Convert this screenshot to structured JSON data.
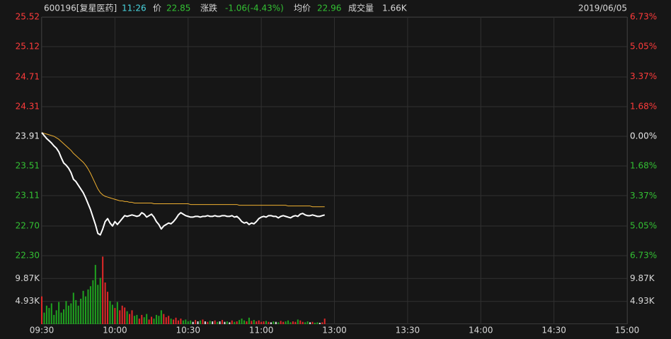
{
  "header": {
    "symbol": "600196[复星医药]",
    "time": "11:26",
    "price_label": "价",
    "price": "22.85",
    "change_label": "涨跌",
    "change": "-1.06(-4.43%)",
    "avg_label": "均价",
    "avg": "22.96",
    "volume_label": "成交量",
    "volume": "1.66K",
    "date": "2019/06/05"
  },
  "chart_data": [
    {
      "type": "line",
      "xlim": [
        0,
        240
      ],
      "xticks": [
        {
          "value": 0,
          "label": "09:30"
        },
        {
          "value": 30,
          "label": "10:00"
        },
        {
          "value": 60,
          "label": "10:30"
        },
        {
          "value": 90,
          "label": "11:00"
        },
        {
          "value": 120,
          "label": "13:00"
        },
        {
          "value": 150,
          "label": "13:30"
        },
        {
          "value": 180,
          "label": "14:00"
        },
        {
          "value": 210,
          "label": "14:30"
        },
        {
          "value": 240,
          "label": "15:00"
        }
      ],
      "ylim": [
        22.3,
        25.52
      ],
      "yticks": [
        {
          "value": 25.52,
          "label": "25.52"
        },
        {
          "value": 25.12,
          "label": "25.12"
        },
        {
          "value": 24.71,
          "label": "24.71"
        },
        {
          "value": 24.31,
          "label": "24.31"
        },
        {
          "value": 23.91,
          "label": "23.91"
        },
        {
          "value": 23.51,
          "label": "23.51"
        },
        {
          "value": 23.11,
          "label": "23.11"
        },
        {
          "value": 22.7,
          "label": "22.70"
        },
        {
          "value": 22.3,
          "label": "22.30"
        }
      ],
      "y2lim": [
        -6.73,
        6.73
      ],
      "y2ticks": [
        {
          "value": 6.73,
          "label": "6.73%"
        },
        {
          "value": 5.05,
          "label": "5.05%"
        },
        {
          "value": 3.37,
          "label": "3.37%"
        },
        {
          "value": 1.68,
          "label": "1.68%"
        },
        {
          "value": 0,
          "label": "0.00%"
        },
        {
          "value": -1.68,
          "label": "1.68%"
        },
        {
          "value": -3.37,
          "label": "3.37%"
        },
        {
          "value": -5.05,
          "label": "5.05%"
        },
        {
          "value": -6.73,
          "label": "6.73%"
        }
      ],
      "grid": true,
      "up_color": "#ff3b3b",
      "down_color": "#33c033",
      "flat_color": "#e6e6e6",
      "series": [
        {
          "name": "价",
          "color": "#ffffff",
          "values": [
            23.96,
            23.92,
            23.88,
            23.85,
            23.82,
            23.78,
            23.75,
            23.7,
            23.62,
            23.55,
            23.52,
            23.48,
            23.42,
            23.33,
            23.3,
            23.25,
            23.2,
            23.15,
            23.08,
            23.0,
            22.92,
            22.82,
            22.72,
            22.6,
            22.58,
            22.66,
            22.76,
            22.8,
            22.74,
            22.7,
            22.76,
            22.72,
            22.76,
            22.8,
            22.84,
            22.83,
            22.84,
            22.85,
            22.84,
            22.83,
            22.84,
            22.88,
            22.86,
            22.82,
            22.84,
            22.86,
            22.82,
            22.76,
            22.72,
            22.66,
            22.7,
            22.72,
            22.74,
            22.73,
            22.76,
            22.8,
            22.85,
            22.88,
            22.86,
            22.84,
            22.83,
            22.82,
            22.82,
            22.83,
            22.83,
            22.82,
            22.83,
            22.83,
            22.84,
            22.83,
            22.83,
            22.84,
            22.83,
            22.83,
            22.84,
            22.84,
            22.83,
            22.83,
            22.84,
            22.82,
            22.83,
            22.8,
            22.76,
            22.74,
            22.75,
            22.72,
            22.74,
            22.73,
            22.76,
            22.8,
            22.82,
            22.83,
            22.82,
            22.84,
            22.84,
            22.83,
            22.83,
            22.81,
            22.83,
            22.84,
            22.83,
            22.82,
            22.81,
            22.83,
            22.84,
            22.83,
            22.86,
            22.87,
            22.85,
            22.84,
            22.84,
            22.85,
            22.84,
            22.83,
            22.83,
            22.84,
            22.85
          ]
        },
        {
          "name": "均价",
          "color": "#f0b030",
          "values": [
            23.96,
            23.95,
            23.94,
            23.93,
            23.92,
            23.91,
            23.89,
            23.87,
            23.84,
            23.81,
            23.78,
            23.75,
            23.72,
            23.68,
            23.65,
            23.62,
            23.59,
            23.56,
            23.52,
            23.47,
            23.41,
            23.34,
            23.27,
            23.2,
            23.15,
            23.12,
            23.1,
            23.09,
            23.08,
            23.07,
            23.06,
            23.05,
            23.04,
            23.04,
            23.03,
            23.03,
            23.02,
            23.02,
            23.01,
            23.01,
            23.01,
            23.01,
            23.01,
            23.01,
            23.01,
            23.01,
            23.0,
            23.0,
            23.0,
            23.0,
            23.0,
            23.0,
            23.0,
            23.0,
            23.0,
            23.0,
            23.0,
            23.0,
            23.0,
            23.0,
            23.0,
            22.99,
            22.99,
            22.99,
            22.99,
            22.99,
            22.99,
            22.99,
            22.99,
            22.99,
            22.99,
            22.99,
            22.99,
            22.99,
            22.99,
            22.99,
            22.99,
            22.99,
            22.99,
            22.99,
            22.99,
            22.98,
            22.98,
            22.98,
            22.98,
            22.98,
            22.98,
            22.98,
            22.98,
            22.98,
            22.98,
            22.98,
            22.98,
            22.98,
            22.98,
            22.98,
            22.98,
            22.98,
            22.98,
            22.98,
            22.98,
            22.97,
            22.97,
            22.97,
            22.97,
            22.97,
            22.97,
            22.97,
            22.97,
            22.97,
            22.97,
            22.96,
            22.96,
            22.96,
            22.96,
            22.96,
            22.96
          ]
        }
      ]
    },
    {
      "type": "bar",
      "ylim": [
        0,
        14.8
      ],
      "yticks": [
        {
          "value": 9.87,
          "label": "9.87K"
        },
        {
          "value": 4.93,
          "label": "4.93K"
        }
      ],
      "values": [
        6.0,
        2.5,
        4.0,
        3.5,
        4.5,
        2.0,
        3.0,
        4.8,
        2.5,
        3.2,
        5.0,
        4.0,
        4.5,
        6.8,
        5.2,
        4.0,
        5.5,
        7.2,
        6.0,
        7.5,
        8.2,
        9.5,
        12.8,
        8.5,
        10.0,
        14.6,
        9.0,
        7.0,
        5.0,
        4.2,
        3.5,
        4.8,
        3.0,
        4.0,
        3.6,
        2.8,
        2.2,
        3.0,
        1.8,
        2.0,
        1.2,
        2.0,
        1.5,
        2.2,
        1.0,
        1.6,
        1.2,
        2.0,
        1.8,
        3.0,
        2.2,
        1.5,
        1.8,
        1.2,
        1.0,
        1.4,
        0.8,
        1.2,
        0.8,
        1.0,
        0.6,
        0.8,
        0.5,
        0.9,
        0.6,
        0.8,
        1.0,
        0.6,
        0.5,
        0.7,
        0.6,
        0.8,
        0.5,
        0.6,
        0.9,
        0.5,
        0.6,
        0.4,
        0.8,
        0.5,
        0.6,
        0.9,
        1.2,
        0.8,
        0.6,
        1.4,
        0.7,
        0.9,
        0.6,
        0.8,
        0.5,
        0.6,
        0.7,
        0.5,
        0.4,
        0.6,
        0.5,
        0.4,
        0.7,
        0.5,
        0.6,
        0.8,
        0.4,
        0.6,
        0.5,
        1.0,
        0.8,
        0.5,
        0.4,
        0.6,
        0.4,
        0.5,
        0.3,
        0.4,
        0.3,
        0.4,
        1.2
      ],
      "up_color": "#e02828",
      "down_color": "#1fa31f",
      "flat_color": "#e6e6e6"
    }
  ]
}
